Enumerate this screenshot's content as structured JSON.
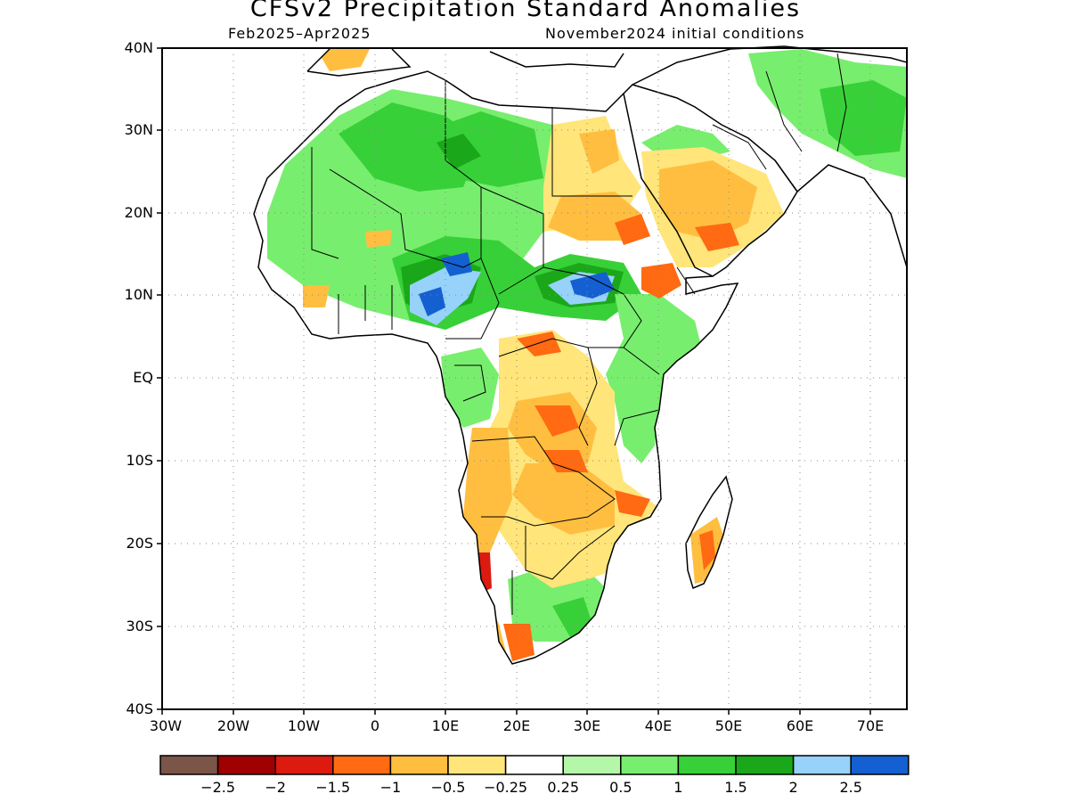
{
  "map": {
    "title": "CFSv2 Precipitation Standard Anomalies",
    "period": "Feb2025–Apr2025",
    "initial_conditions": "November2024 initial conditions",
    "lat_labels": [
      "40N",
      "30N",
      "20N",
      "10N",
      "EQ",
      "10S",
      "20S",
      "30S",
      "40S"
    ],
    "lon_labels": [
      "30W",
      "20W",
      "10W",
      "0",
      "10E",
      "20E",
      "30E",
      "40E",
      "50E",
      "60E",
      "70E"
    ]
  },
  "colorbar": {
    "colors": [
      "#7a5548",
      "#a00000",
      "#dc1a10",
      "#ff6a12",
      "#ffbe40",
      "#ffe57a",
      "#ffffff",
      "#b4f7a8",
      "#78ee6e",
      "#38d038",
      "#1aa81a",
      "#96d2fa",
      "#1460d2"
    ],
    "labels": [
      "−2.5",
      "−2",
      "−1.5",
      "−1",
      "−0.5",
      "−0.25",
      "0.25",
      "0.5",
      "1",
      "1.5",
      "2",
      "2.5"
    ]
  }
}
